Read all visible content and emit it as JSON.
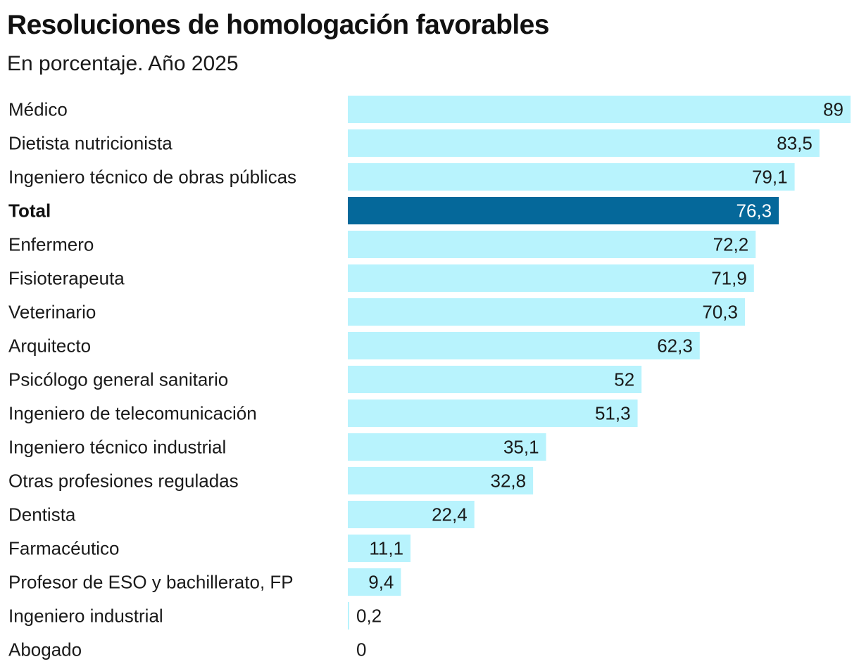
{
  "chart_data": {
    "type": "bar",
    "orientation": "horizontal",
    "title": "Resoluciones de homologación favorables",
    "subtitle": "En porcentaje. Año 2025",
    "xlabel": "",
    "ylabel": "",
    "xlim": [
      0,
      89
    ],
    "grid": false,
    "legend": "none",
    "categories": [
      "Médico",
      "Dietista nutricionista",
      "Ingeniero técnico de obras públicas",
      "Total",
      "Enfermero",
      "Fisioterapeuta",
      "Veterinario",
      "Arquitecto",
      "Psicólogo general sanitario",
      "Ingeniero de telecomunicación",
      "Ingeniero técnico industrial",
      "Otras profesiones reguladas",
      "Dentista",
      "Farmacéutico",
      "Profesor de ESO y bachillerato, FP",
      "Ingeniero industrial",
      "Abogado"
    ],
    "values": [
      89,
      83.5,
      79.1,
      76.3,
      72.2,
      71.9,
      70.3,
      62.3,
      52,
      51.3,
      35.1,
      32.8,
      22.4,
      11.1,
      9.4,
      0.2,
      0
    ],
    "value_labels": [
      "89",
      "83,5",
      "79,1",
      "76,3",
      "72,2",
      "71,9",
      "70,3",
      "62,3",
      "52",
      "51,3",
      "35,1",
      "32,8",
      "22,4",
      "11,1",
      "9,4",
      "0,2",
      "0"
    ],
    "highlight_category": "Total",
    "colors": {
      "bar": "#b8f3fd",
      "highlight": "#05689a",
      "highlight_label": "#ffffff",
      "label": "#1a1a1a"
    }
  }
}
